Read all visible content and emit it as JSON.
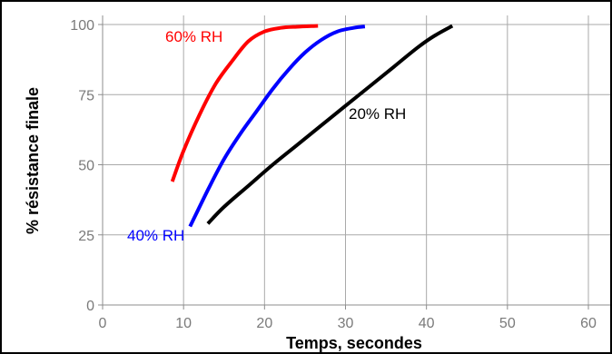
{
  "chart_data": {
    "type": "line",
    "xlabel": "Temps, secondes",
    "ylabel": "% résistance finale",
    "xlim": [
      0,
      60
    ],
    "ylim": [
      0,
      100
    ],
    "xticks": [
      0,
      10,
      20,
      30,
      40,
      50,
      60
    ],
    "yticks": [
      0,
      25,
      50,
      75,
      100
    ],
    "grid": true,
    "series": [
      {
        "name": "60% RH",
        "color": "#ff0000",
        "x": [
          8.6,
          10,
          12,
          14,
          16,
          18,
          20,
          22,
          24,
          26.6
        ],
        "y": [
          44,
          55,
          68,
          79,
          87,
          94,
          97.5,
          98.8,
          99.2,
          99.5
        ]
      },
      {
        "name": "40% RH",
        "color": "#0000ff",
        "x": [
          10.8,
          13,
          15,
          17,
          19,
          21,
          23,
          25,
          27,
          29,
          31,
          32.4
        ],
        "y": [
          28,
          41,
          52,
          61,
          69,
          77,
          84,
          90,
          94.5,
          97.5,
          98.8,
          99.3
        ]
      },
      {
        "name": "20% RH",
        "color": "#000000",
        "x": [
          13,
          15,
          18,
          21,
          24,
          27,
          30,
          33,
          36,
          39,
          41,
          43.2
        ],
        "y": [
          29,
          35,
          42.5,
          50,
          57,
          64,
          71,
          78,
          85,
          92,
          96,
          99.5
        ]
      }
    ]
  }
}
